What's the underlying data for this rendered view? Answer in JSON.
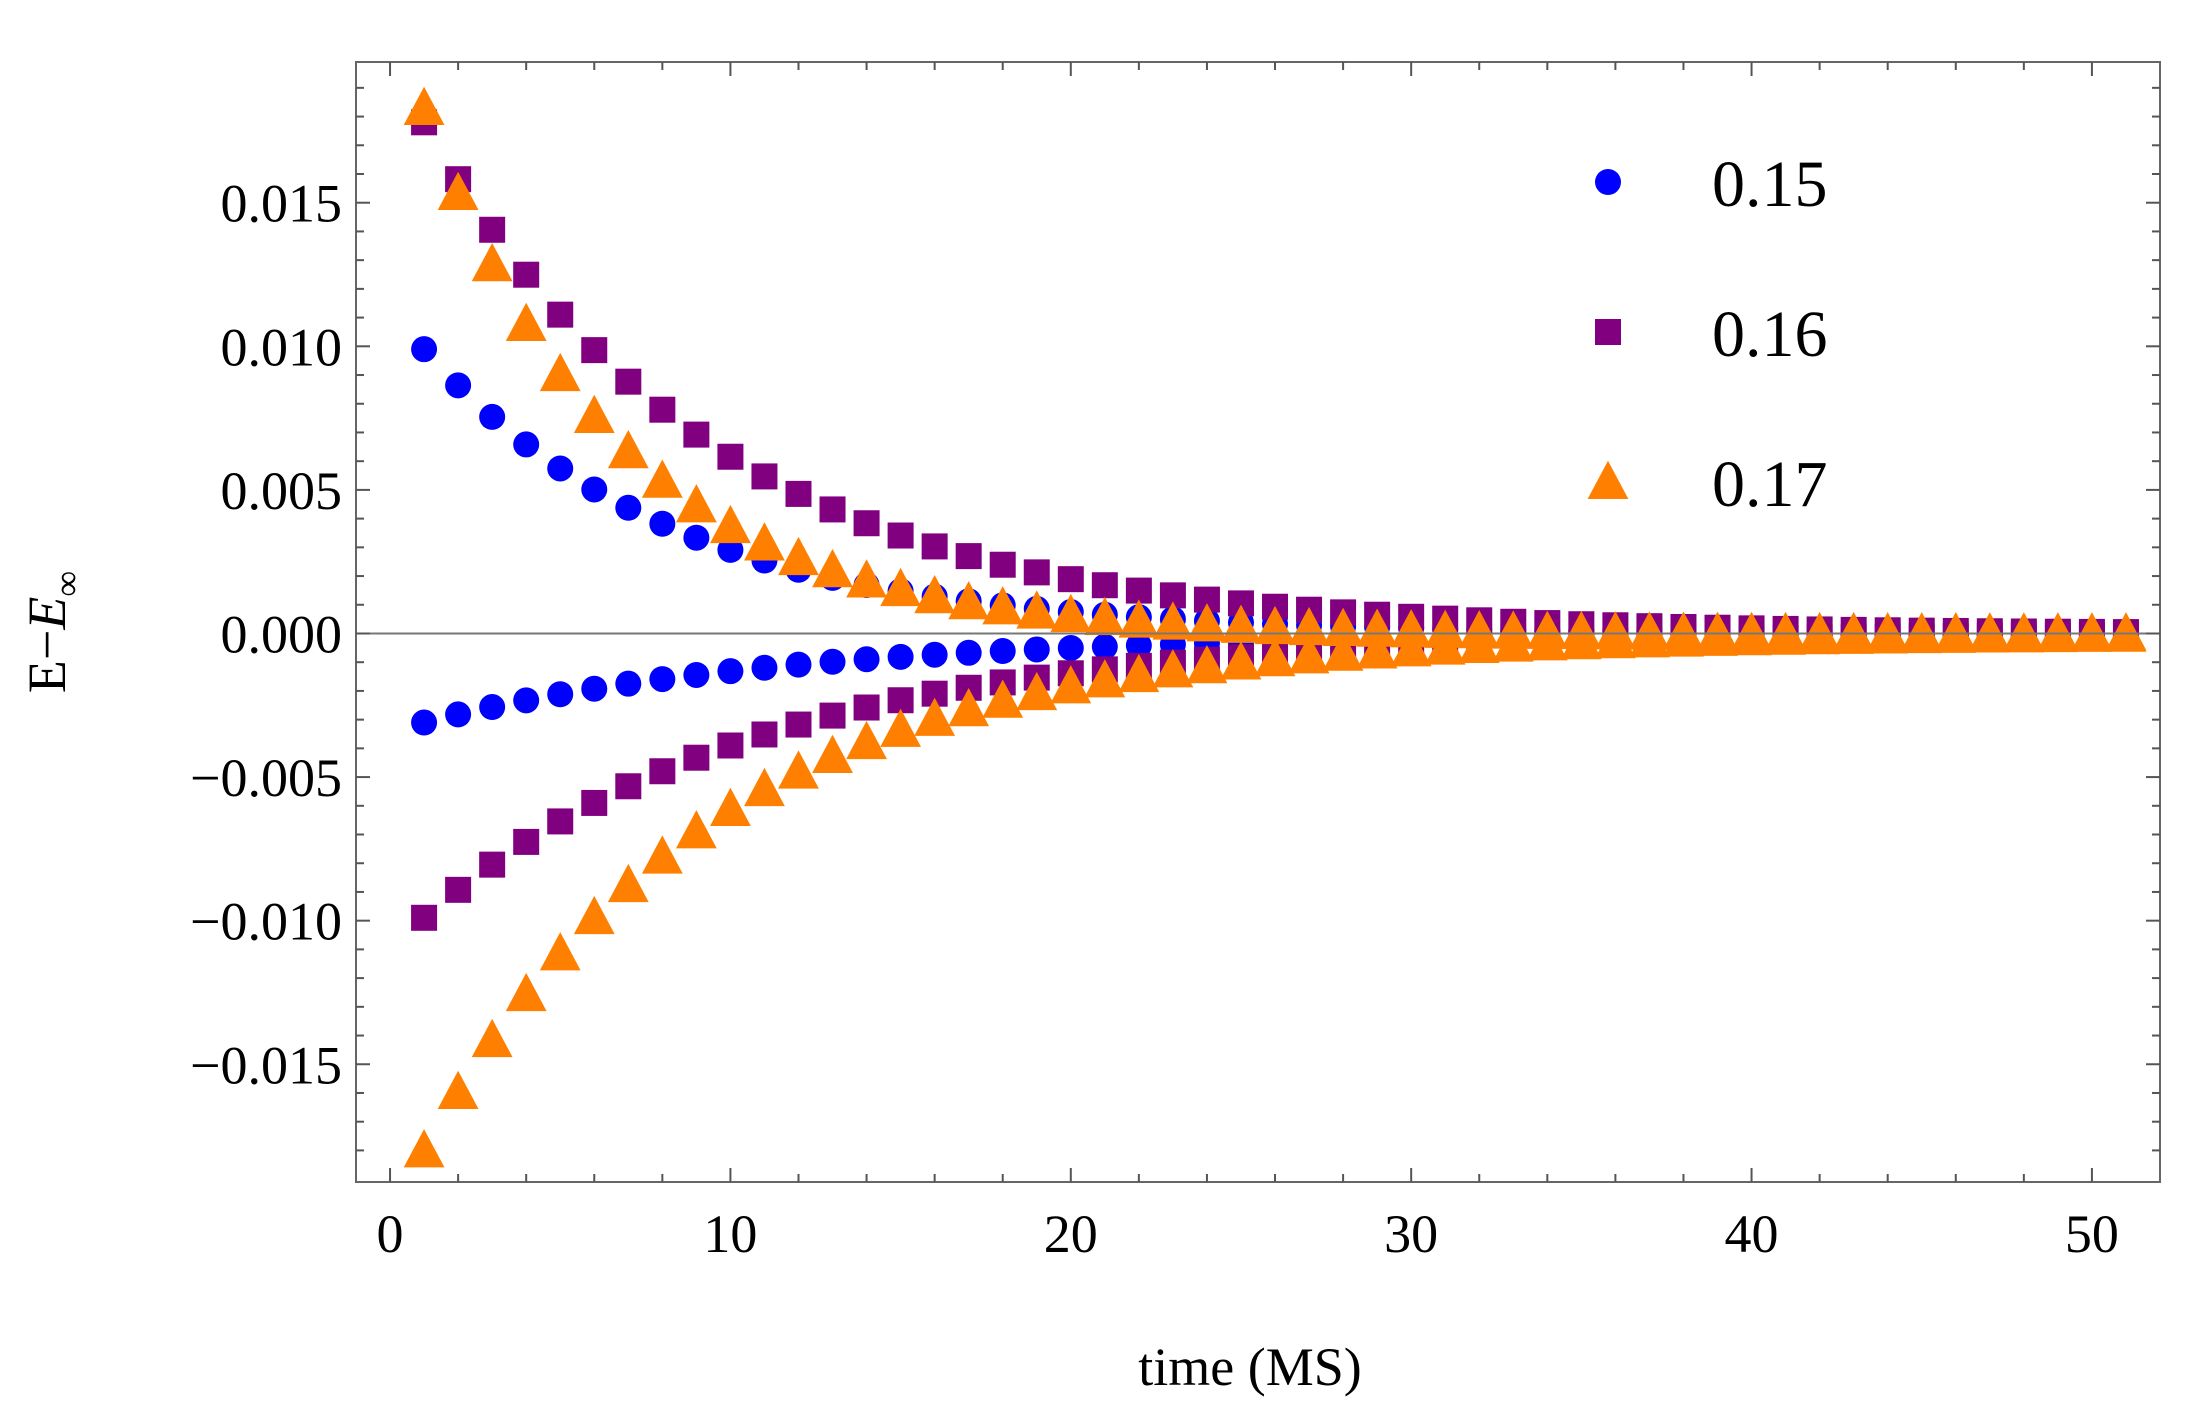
{
  "chart_data": {
    "type": "scatter",
    "title": "",
    "xlabel": "time (MS)",
    "ylabel": {
      "main": "E−",
      "italic": "E",
      "sub": "∞"
    },
    "xlim": [
      -1,
      52
    ],
    "ylim": [
      -0.0191,
      0.0199
    ],
    "xticks": [
      0,
      10,
      20,
      30,
      40,
      50
    ],
    "xtick_labels": [
      "0",
      "10",
      "20",
      "30",
      "40",
      "50"
    ],
    "yticks": [
      -0.015,
      -0.01,
      -0.005,
      0,
      0.005,
      0.01,
      0.015
    ],
    "ytick_labels": [
      "−0.015",
      "−0.010",
      "−0.005",
      "0.000",
      "0.005",
      "0.010",
      "0.015"
    ],
    "grid": false,
    "legend_position": "top-right",
    "series": [
      {
        "name": "0.15",
        "marker": "circle",
        "color": "#0000ff",
        "branches": [
          {
            "x0": 1,
            "x1": 51,
            "y_first": 0.0099,
            "decay": 0.136
          },
          {
            "x0": 1,
            "x1": 51,
            "y_first": -0.0031,
            "decay": 0.0955
          }
        ]
      },
      {
        "name": "0.16",
        "marker": "square",
        "color": "#800080",
        "branches": [
          {
            "x0": 1,
            "x1": 51,
            "y_first": 0.0178,
            "decay": 0.118
          },
          {
            "x0": 1,
            "x1": 51,
            "y_first": -0.0099,
            "decay": 0.1035
          }
        ]
      },
      {
        "name": "0.17",
        "marker": "triangle",
        "color": "#ff8000",
        "branches": [
          {
            "x0": 1,
            "x1": 51,
            "y_first": 0.0183,
            "decay": 0.1765
          },
          {
            "x0": 1,
            "x1": 51,
            "y_first": -0.018,
            "decay": 0.12
          }
        ]
      }
    ]
  }
}
